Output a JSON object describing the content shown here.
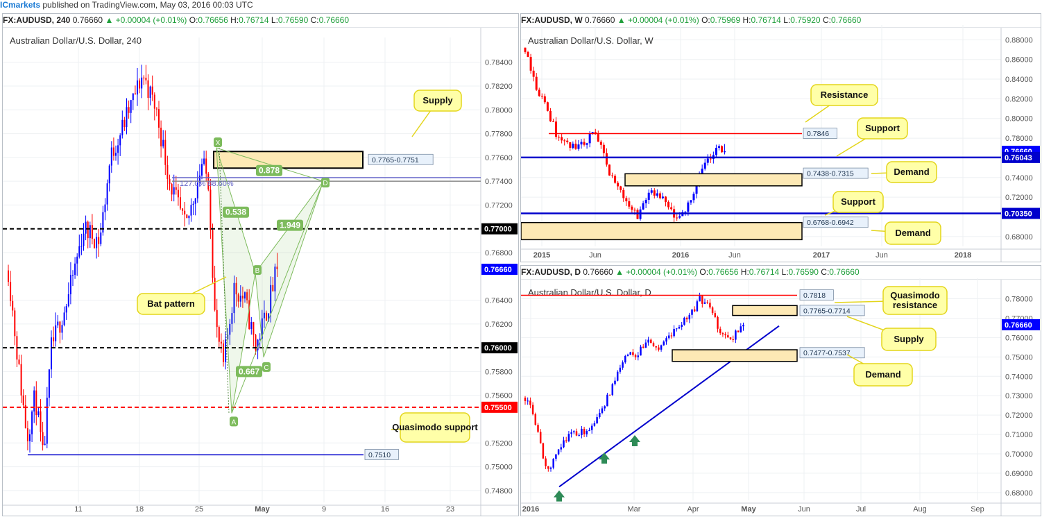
{
  "topbar": {
    "brand": "ICmarkets",
    "text": " published on TradingView.com, May 03, 2016 00:03 UTC"
  },
  "colors": {
    "up": "#0000ff",
    "down": "#ff0000",
    "support": "#0000cc",
    "zone_fill": "#fde9b5",
    "callout_fill": "#ffffa8",
    "callout_border": "#e3d51b",
    "pattern": "#7dbb5c"
  },
  "chart_data": [
    {
      "id": "h4",
      "type": "candlestick",
      "header": {
        "symbol": "FX:AUDUSD, 240",
        "last": "0.76660",
        "change": "▲ +0.00004 (+0.01%)",
        "o_label": "O:",
        "o": "0.76656",
        "h_label": "H:",
        "h": "0.76714",
        "l_label": "L:",
        "l": "0.76590",
        "c_label": "C:",
        "c": "0.76660"
      },
      "title": "Australian Dollar/U.S. Dollar, 240",
      "ylim": [
        0.747,
        0.7855
      ],
      "y_ticks": [
        "0.78400",
        "0.78200",
        "0.78000",
        "0.77800",
        "0.77600",
        "0.77400",
        "0.77200",
        "0.76800",
        "0.76400",
        "0.76200",
        "0.75800",
        "0.75600",
        "0.75200",
        "0.75000",
        "0.74800"
      ],
      "x_ticks": [
        "11",
        "18",
        "25",
        "May",
        "9",
        "16",
        "23"
      ],
      "price_tags": [
        {
          "value": 0.77,
          "label": "0.77000",
          "color": "#000000"
        },
        {
          "value": 0.7666,
          "label": "0.76660",
          "color": "#0000ff"
        },
        {
          "value": 0.76,
          "label": "0.76000",
          "color": "#000000"
        },
        {
          "value": 0.755,
          "label": "0.75500",
          "color": "#ff0000"
        }
      ],
      "levels": [
        {
          "value": 0.77,
          "style": "dashed",
          "color": "#000000"
        },
        {
          "value": 0.76,
          "style": "dashed",
          "color": "#000000"
        },
        {
          "value": 0.755,
          "style": "dashed",
          "color": "#ff0000"
        },
        {
          "value": 0.7743,
          "style": "solid",
          "color": "#6464c8"
        },
        {
          "value": 0.774,
          "style": "solid",
          "color": "#888888"
        }
      ],
      "zones": [
        {
          "label": "0.7765-0.7751",
          "top": 0.7765,
          "bottom": 0.7751
        }
      ],
      "line_tags": [
        {
          "label": "0.7510",
          "value": 0.751
        }
      ],
      "pattern_labels": [
        "X",
        "A",
        "B",
        "C",
        "D"
      ],
      "ratios": [
        "0.878",
        "0.538",
        "1.949",
        "0.667"
      ],
      "fib_text": "127.0% 88.60%",
      "callouts": [
        "Supply",
        "Bat pattern",
        "Quasimodo support"
      ]
    },
    {
      "id": "weekly",
      "type": "candlestick",
      "header": {
        "symbol": "FX:AUDUSD, W",
        "last": "0.76660",
        "change": "▲ +0.00004 (+0.01%)",
        "o_label": "O:",
        "o": "0.75969",
        "h_label": "H:",
        "h": "0.76714",
        "l_label": "L:",
        "l": "0.75920",
        "c_label": "C:",
        "c": "0.76660"
      },
      "title": "Australian Dollar/U.S. Dollar, W",
      "ylim": [
        0.67,
        0.888
      ],
      "y_ticks": [
        "0.88000",
        "0.86000",
        "0.84000",
        "0.82000",
        "0.80000",
        "0.78000",
        "0.74000",
        "0.72000",
        "0.68000"
      ],
      "x_ticks": [
        "2015",
        "Jun",
        "2016",
        "Jun",
        "2017",
        "Jun",
        "2018"
      ],
      "price_tags": [
        {
          "value": 0.7666,
          "label": "0.76660",
          "color": "#0000ff"
        },
        {
          "value": 0.7604,
          "label": "0.76043",
          "color": "#0000cc"
        },
        {
          "value": 0.7035,
          "label": "0.70350",
          "color": "#0000cc"
        }
      ],
      "levels": [
        {
          "value": 0.7846,
          "color": "#ff0000",
          "extent": "partial"
        },
        {
          "value": 0.7604,
          "color": "#0000cc"
        },
        {
          "value": 0.7035,
          "color": "#0000cc"
        }
      ],
      "zones": [
        {
          "label": "0.7438-0.7315",
          "top": 0.7438,
          "bottom": 0.7315
        },
        {
          "label": "0.6768-0.6942",
          "top": 0.6942,
          "bottom": 0.6768
        }
      ],
      "line_tags": [
        {
          "label": "0.7846",
          "value": 0.7846
        }
      ],
      "callouts": [
        "Resistance",
        "Support",
        "Demand",
        "Support",
        "Demand"
      ]
    },
    {
      "id": "daily",
      "type": "candlestick",
      "header": {
        "symbol": "FX:AUDUSD, D",
        "last": "0.76660",
        "change": "▲ +0.00004 (+0.01%)",
        "o_label": "O:",
        "o": "0.76656",
        "h_label": "H:",
        "h": "0.76714",
        "l_label": "L:",
        "l": "0.76590",
        "c_label": "C:",
        "c": "0.76660"
      },
      "title": "Australian Dollar/U.S. Dollar, D",
      "ylim": [
        0.676,
        0.787
      ],
      "y_ticks": [
        "0.78000",
        "0.77000",
        "0.76000",
        "0.75000",
        "0.74000",
        "0.73000",
        "0.72000",
        "0.71000",
        "0.70000",
        "0.69000",
        "0.68000"
      ],
      "x_ticks": [
        "2016",
        "Mar",
        "Apr",
        "May",
        "Jun",
        "Jul",
        "Aug",
        "Sep"
      ],
      "price_tags": [
        {
          "value": 0.7666,
          "label": "0.76660",
          "color": "#0000ff"
        }
      ],
      "levels": [
        {
          "value": 0.7818,
          "color": "#ff0000",
          "extent": "partial"
        }
      ],
      "zones": [
        {
          "label": "0.7765-0.7714",
          "top": 0.7765,
          "bottom": 0.7714
        },
        {
          "label": "0.7477-0.7537",
          "top": 0.7537,
          "bottom": 0.7477
        }
      ],
      "line_tags": [
        {
          "label": "0.7818",
          "value": 0.7818
        }
      ],
      "callouts": [
        "Quasimodo\nresistance",
        "Supply",
        "Demand"
      ]
    }
  ]
}
